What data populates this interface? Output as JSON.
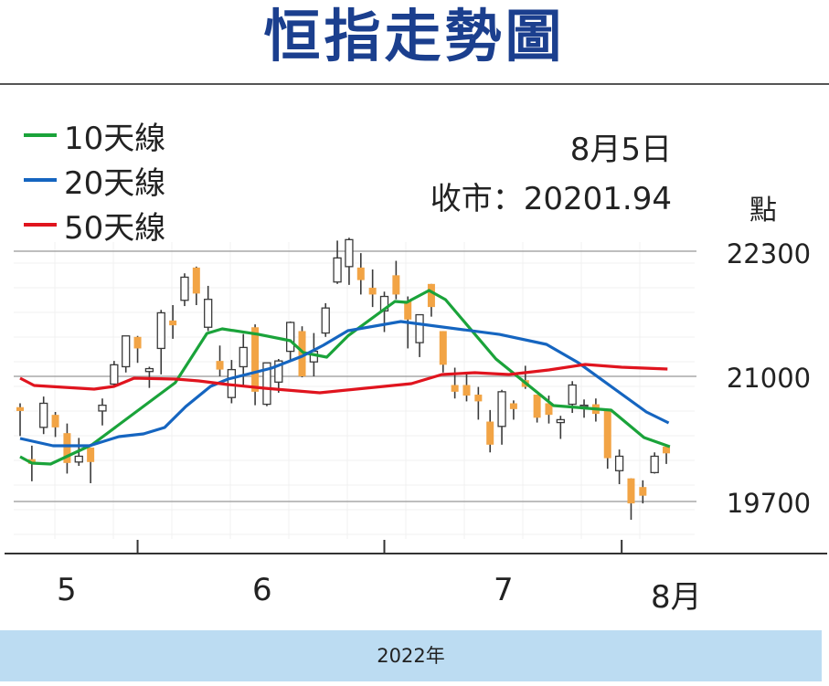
{
  "header": {
    "title": "恒指走勢圖"
  },
  "legend": [
    {
      "label": "10天線",
      "color": "#1aa33a"
    },
    {
      "label": "20天線",
      "color": "#1565c0"
    },
    {
      "label": "50天線",
      "color": "#e0141e"
    }
  ],
  "info": {
    "date": "8月5日",
    "close": "收市：20201.94"
  },
  "footer": {
    "year": "2022年"
  },
  "chart_data": {
    "type": "candlestick",
    "title": "恒指走勢圖",
    "ylabel": "點",
    "xlabel": "2022年",
    "ylim": [
      19000,
      22500
    ],
    "yticks": [
      {
        "value": 22300,
        "label": "22300"
      },
      {
        "value": 21000,
        "label": "21000"
      },
      {
        "value": 19700,
        "label": "19700"
      }
    ],
    "xticks": [
      {
        "index": 4,
        "label": "5"
      },
      {
        "index": 20.5,
        "label": "6"
      },
      {
        "index": 41,
        "label": "7"
      },
      {
        "index": 55.5,
        "label": "8月"
      }
    ],
    "month_boundaries": [
      10,
      31,
      51.2
    ],
    "colors": {
      "up": "#ffffff",
      "down": "#f2a445",
      "wick": "#3a3a3a"
    },
    "candles_ohlc": [
      [
        20680,
        20720,
        20380,
        20640
      ],
      [
        20140,
        20280,
        19910,
        20090
      ],
      [
        20470,
        20790,
        20400,
        20720
      ],
      [
        20600,
        20630,
        20370,
        20470
      ],
      [
        20410,
        20510,
        19990,
        20100
      ],
      [
        20110,
        20360,
        20070,
        20170
      ],
      [
        20260,
        20260,
        19890,
        20110
      ],
      [
        20640,
        20770,
        20490,
        20700
      ],
      [
        20920,
        21160,
        20900,
        21120
      ],
      [
        21100,
        21420,
        21040,
        21420
      ],
      [
        21410,
        21420,
        21140,
        21290
      ],
      [
        21050,
        21100,
        20880,
        21080
      ],
      [
        21290,
        21690,
        21020,
        21660
      ],
      [
        21580,
        21740,
        21390,
        21530
      ],
      [
        21790,
        22070,
        21730,
        22030
      ],
      [
        22130,
        22140,
        21740,
        21860
      ],
      [
        21510,
        21940,
        21470,
        21800
      ],
      [
        21160,
        21320,
        21000,
        21070
      ],
      [
        20780,
        21170,
        20720,
        21070
      ],
      [
        21100,
        21440,
        20910,
        21300
      ],
      [
        21510,
        21540,
        20700,
        20840
      ],
      [
        20710,
        21140,
        20690,
        21140
      ],
      [
        20940,
        21180,
        20830,
        21160
      ],
      [
        21260,
        21570,
        21160,
        21560
      ],
      [
        21470,
        21520,
        20990,
        21000
      ],
      [
        21150,
        21450,
        21000,
        21260
      ],
      [
        21450,
        21760,
        21410,
        21710
      ],
      [
        21980,
        22410,
        21960,
        22230
      ],
      [
        22140,
        22440,
        21950,
        22420
      ],
      [
        22130,
        22280,
        21850,
        22000
      ],
      [
        21920,
        22110,
        21720,
        21850
      ],
      [
        21680,
        21880,
        21460,
        21830
      ],
      [
        22050,
        22200,
        21800,
        21850
      ],
      [
        21780,
        21830,
        21290,
        21590
      ],
      [
        21350,
        21640,
        21200,
        21640
      ],
      [
        21960,
        21960,
        21620,
        21720
      ],
      [
        21470,
        21470,
        21040,
        21120
      ],
      [
        20910,
        21090,
        20770,
        20840
      ],
      [
        20910,
        21020,
        20740,
        20800
      ],
      [
        20810,
        20890,
        20550,
        20740
      ],
      [
        20530,
        20650,
        20210,
        20290
      ],
      [
        20480,
        20860,
        20290,
        20840
      ],
      [
        20720,
        20750,
        20550,
        20660
      ],
      [
        20960,
        21110,
        20870,
        20890
      ],
      [
        20810,
        20810,
        20520,
        20570
      ],
      [
        20720,
        20800,
        20510,
        20600
      ],
      [
        20520,
        20590,
        20350,
        20550
      ],
      [
        20710,
        20950,
        20620,
        20910
      ],
      [
        20690,
        20760,
        20570,
        20700
      ],
      [
        20710,
        20770,
        20530,
        20610
      ],
      [
        20640,
        20640,
        20040,
        20150
      ],
      [
        20020,
        20240,
        19880,
        20170
      ],
      [
        19940,
        19940,
        19510,
        19680
      ],
      [
        19850,
        19920,
        19680,
        19760
      ],
      [
        20000,
        20210,
        19990,
        20170
      ],
      [
        20270,
        20290,
        20090,
        20200
      ]
    ],
    "series": [
      {
        "name": "10天線",
        "color": "#1aa33a",
        "points": [
          [
            0,
            20165
          ],
          [
            1,
            20099
          ],
          [
            2.6,
            20089
          ],
          [
            6.1,
            20288
          ],
          [
            13.2,
            20934
          ],
          [
            15.9,
            21446
          ],
          [
            17.2,
            21493
          ],
          [
            20.3,
            21436
          ],
          [
            23,
            21370
          ],
          [
            24.1,
            21247
          ],
          [
            26.1,
            21199
          ],
          [
            27.9,
            21420
          ],
          [
            31.9,
            21778
          ],
          [
            32.9,
            21769
          ],
          [
            34.8,
            21892
          ],
          [
            36.2,
            21797
          ],
          [
            40.5,
            21180
          ],
          [
            45.4,
            20696
          ],
          [
            50.3,
            20649
          ],
          [
            53.1,
            20364
          ],
          [
            55.3,
            20269
          ]
        ]
      },
      {
        "name": "20天線",
        "color": "#1565c0",
        "points": [
          [
            0,
            20355
          ],
          [
            2.8,
            20279
          ],
          [
            5.9,
            20279
          ],
          [
            8.4,
            20374
          ],
          [
            10.5,
            20402
          ],
          [
            12.3,
            20469
          ],
          [
            14.1,
            20687
          ],
          [
            16.2,
            20896
          ],
          [
            17.7,
            20972
          ],
          [
            21.4,
            21085
          ],
          [
            24,
            21209
          ],
          [
            25.8,
            21323
          ],
          [
            27.9,
            21474
          ],
          [
            32.4,
            21569
          ],
          [
            40.8,
            21436
          ],
          [
            44.8,
            21332
          ],
          [
            47.5,
            21142
          ],
          [
            53.3,
            20630
          ],
          [
            55.2,
            20516
          ]
        ]
      },
      {
        "name": "50天線",
        "color": "#e0141e",
        "points": [
          [
            0,
            20981
          ],
          [
            1.2,
            20905
          ],
          [
            6.3,
            20867
          ],
          [
            8,
            20896
          ],
          [
            9.7,
            20981
          ],
          [
            13.3,
            20972
          ],
          [
            15.2,
            20953
          ],
          [
            17.7,
            20915
          ],
          [
            20.8,
            20877
          ],
          [
            25.5,
            20829
          ],
          [
            28.6,
            20867
          ],
          [
            33.3,
            20924
          ],
          [
            35.9,
            21019
          ],
          [
            38.7,
            21038
          ],
          [
            41.6,
            21019
          ],
          [
            45,
            21066
          ],
          [
            48.1,
            21123
          ],
          [
            51.2,
            21095
          ],
          [
            55.1,
            21076
          ]
        ]
      }
    ]
  }
}
